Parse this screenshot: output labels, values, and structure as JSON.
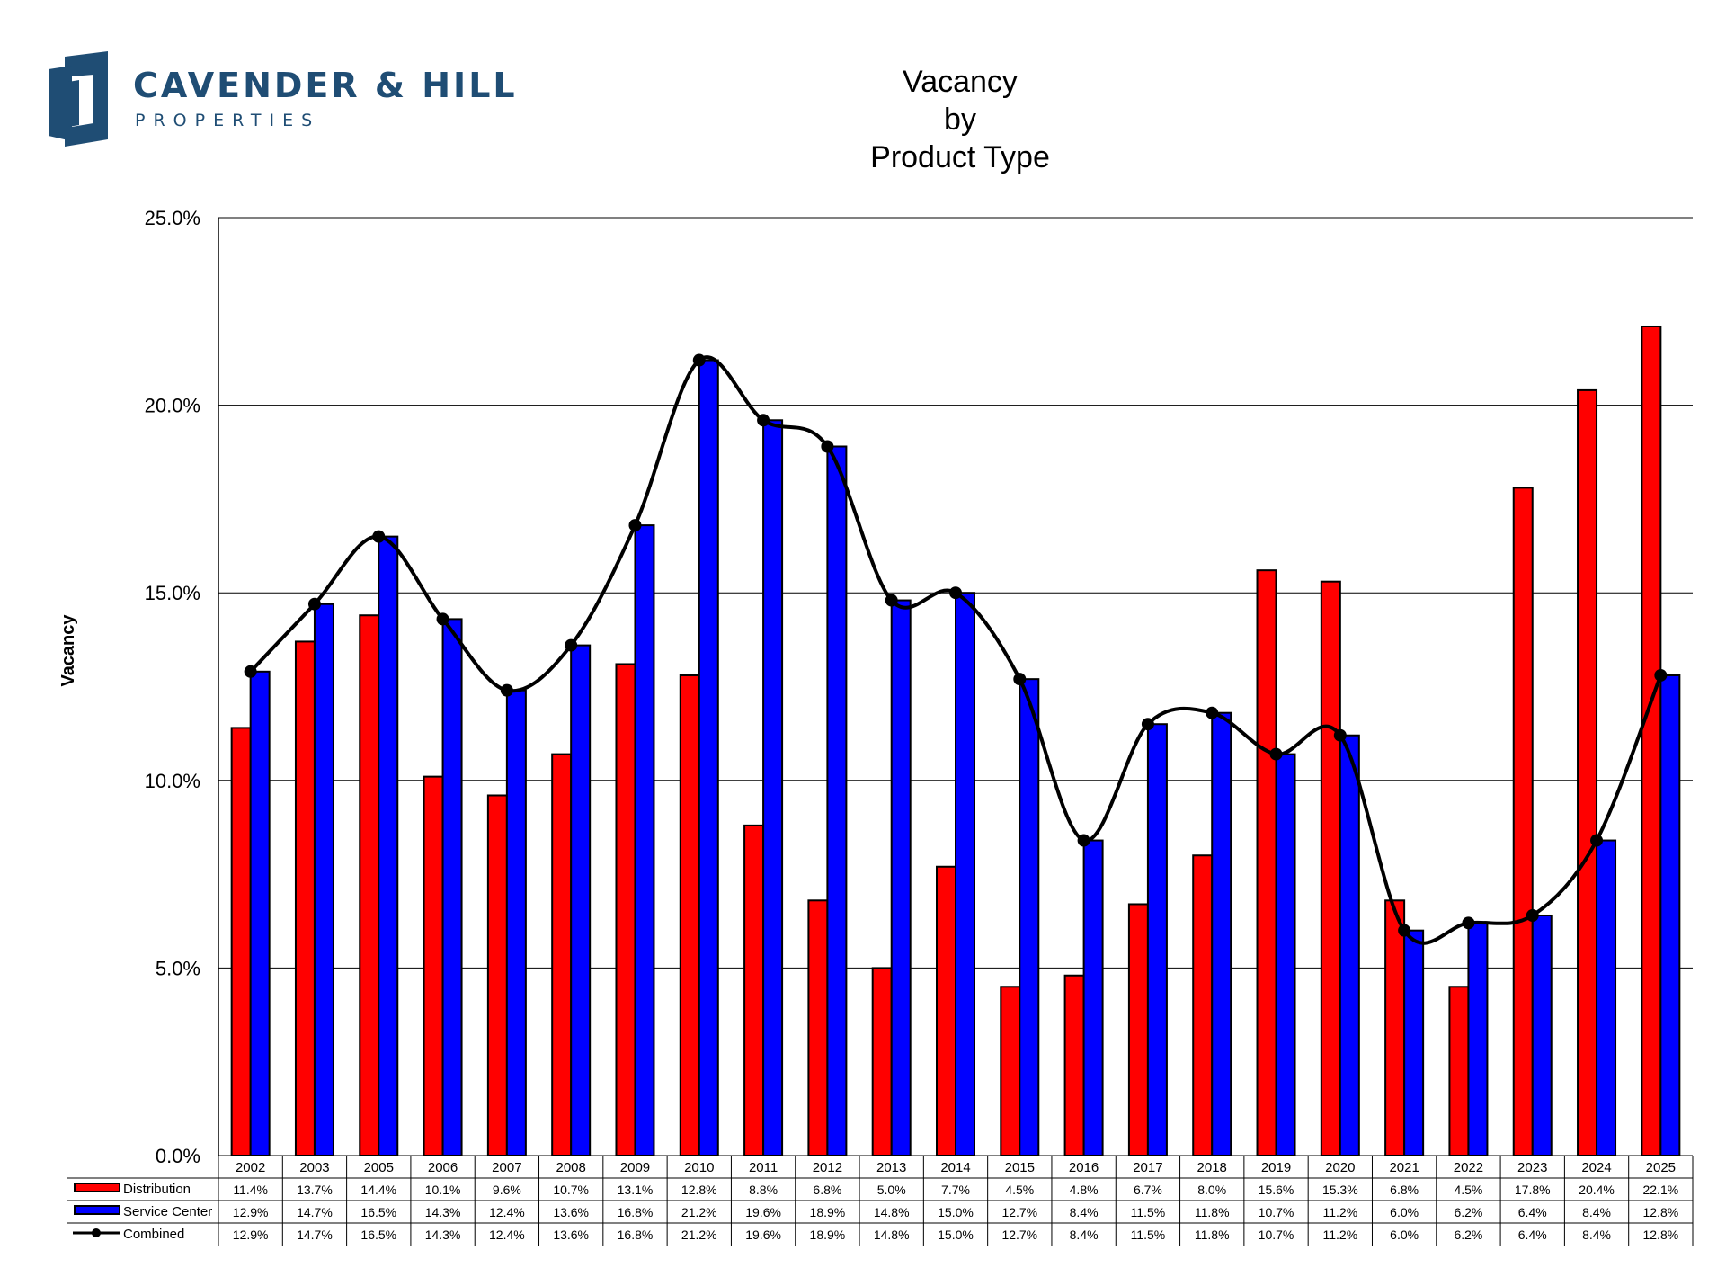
{
  "logo": {
    "name": "CAVENDER & HILL",
    "sub": "PROPERTIES",
    "brand_color": "#1f4d74"
  },
  "title_lines": [
    "Vacancy",
    "by",
    "Product Type"
  ],
  "chart_data": {
    "type": "bar",
    "title": "Vacancy by Product Type",
    "ylabel": "Vacancy",
    "xlabel": "",
    "ylim": [
      0,
      25
    ],
    "yticks": [
      "0.0%",
      "5.0%",
      "10.0%",
      "15.0%",
      "20.0%",
      "25.0%"
    ],
    "grid": true,
    "categories": [
      "2002",
      "2003",
      "2005",
      "2006",
      "2007",
      "2008",
      "2009",
      "2010",
      "2011",
      "2012",
      "2013",
      "2014",
      "2015",
      "2016",
      "2017",
      "2018",
      "2019",
      "2020",
      "2021",
      "2022",
      "2023",
      "2024",
      "2025"
    ],
    "series": [
      {
        "name": "Distribution",
        "kind": "bar",
        "color": "#ff0000",
        "values": [
          11.4,
          13.7,
          14.4,
          10.1,
          9.6,
          10.7,
          13.1,
          12.8,
          8.8,
          6.8,
          5.0,
          7.7,
          4.5,
          4.8,
          6.7,
          8.0,
          15.6,
          15.3,
          6.8,
          4.5,
          17.8,
          20.4,
          22.1
        ],
        "labels": [
          "11.4%",
          "13.7%",
          "14.4%",
          "10.1%",
          "9.6%",
          "10.7%",
          "13.1%",
          "12.8%",
          "8.8%",
          "6.8%",
          "5.0%",
          "7.7%",
          "4.5%",
          "4.8%",
          "6.7%",
          "8.0%",
          "15.6%",
          "15.3%",
          "6.8%",
          "4.5%",
          "17.8%",
          "20.4%",
          "22.1%"
        ]
      },
      {
        "name": "Service Center",
        "kind": "bar",
        "color": "#0000ff",
        "values": [
          12.9,
          14.7,
          16.5,
          14.3,
          12.4,
          13.6,
          16.8,
          21.2,
          19.6,
          18.9,
          14.8,
          15.0,
          12.7,
          8.4,
          11.5,
          11.8,
          10.7,
          11.2,
          6.0,
          6.2,
          6.4,
          8.4,
          12.8
        ],
        "labels": [
          "12.9%",
          "14.7%",
          "16.5%",
          "14.3%",
          "12.4%",
          "13.6%",
          "16.8%",
          "21.2%",
          "19.6%",
          "18.9%",
          "14.8%",
          "15.0%",
          "12.7%",
          "8.4%",
          "11.5%",
          "11.8%",
          "10.7%",
          "11.2%",
          "6.0%",
          "6.2%",
          "6.4%",
          "8.4%",
          "12.8%"
        ]
      },
      {
        "name": "Combined",
        "kind": "line",
        "color": "#000000",
        "values": [
          12.9,
          14.7,
          16.5,
          14.3,
          12.4,
          13.6,
          16.8,
          21.2,
          19.6,
          18.9,
          14.8,
          15.0,
          12.7,
          8.4,
          11.5,
          11.8,
          10.7,
          11.2,
          6.0,
          6.2,
          6.4,
          8.4,
          12.8
        ],
        "labels": [
          "12.9%",
          "14.7%",
          "16.5%",
          "14.3%",
          "12.4%",
          "13.6%",
          "16.8%",
          "21.2%",
          "19.6%",
          "18.9%",
          "14.8%",
          "15.0%",
          "12.7%",
          "8.4%",
          "11.5%",
          "11.8%",
          "10.7%",
          "11.2%",
          "6.0%",
          "6.2%",
          "6.4%",
          "8.4%",
          "12.8%"
        ]
      }
    ]
  }
}
